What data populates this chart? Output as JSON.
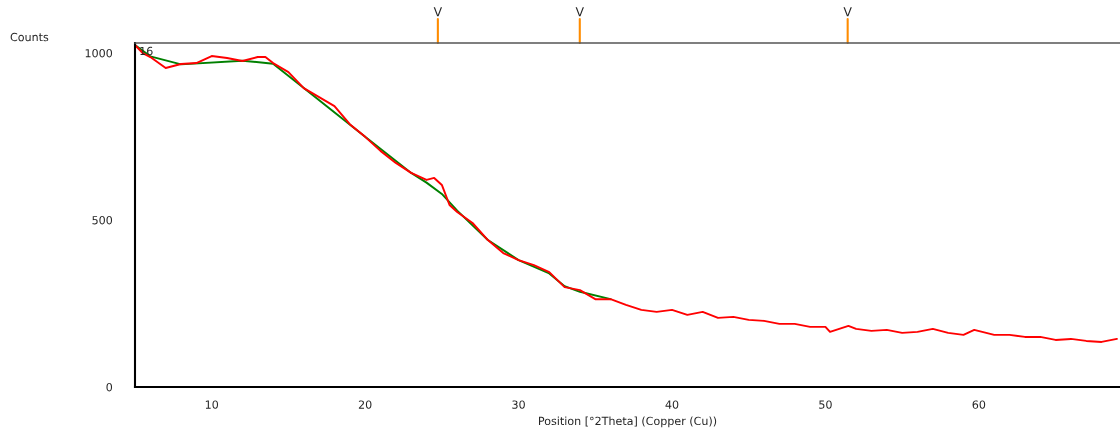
{
  "chart_data": {
    "type": "line",
    "xlabel": "Position [°2Theta] (Copper (Cu))",
    "ylabel": "Counts",
    "xlim": [
      5,
      69.2
    ],
    "ylim": [
      0,
      1030
    ],
    "xticks": [
      10,
      20,
      30,
      40,
      50,
      60
    ],
    "yticks": [
      0,
      500,
      1000
    ],
    "grid": false,
    "legend": false,
    "marker": "none",
    "line_style": "solid",
    "annotations": [
      {
        "text": "16",
        "x": 5,
        "y": 1024
      }
    ],
    "ref_lines": [
      {
        "axis": "x",
        "value": 24.74,
        "label": "V",
        "color": "#ff8c00"
      },
      {
        "axis": "x",
        "value": 33.99,
        "label": "V",
        "color": "#ff8c00"
      },
      {
        "axis": "x",
        "value": 51.45,
        "label": "V",
        "color": "#ff8c00"
      }
    ],
    "series": [
      {
        "color": "#008000",
        "x": [
          5,
          6,
          8,
          12,
          14,
          16,
          20,
          23,
          24,
          25,
          26,
          28,
          30,
          32,
          33,
          34,
          36
        ],
        "values": [
          1024,
          990,
          966,
          977,
          968,
          895,
          749,
          641,
          612,
          578,
          528,
          440,
          380,
          340,
          302,
          285,
          263
        ]
      },
      {
        "color": "#ff0000",
        "x": [
          5,
          5.5,
          6,
          7,
          8,
          9,
          10,
          11,
          12,
          13,
          13.5,
          14,
          15,
          16,
          17,
          18,
          19,
          20,
          21,
          22,
          23,
          24,
          24.5,
          25,
          25.5,
          26,
          27,
          28,
          29,
          30,
          31,
          32,
          33,
          34,
          35,
          36,
          37,
          38,
          39,
          40,
          41,
          42,
          43,
          44,
          45,
          46,
          47,
          48,
          49,
          50,
          50.3,
          51.5,
          52,
          53,
          54,
          55,
          56,
          57,
          58,
          59,
          59.7,
          61,
          62,
          63,
          64,
          65,
          66,
          67,
          68,
          69
        ],
        "values": [
          1024,
          1000,
          988,
          955,
          967,
          970,
          991,
          985,
          976,
          988,
          988,
          970,
          943,
          895,
          868,
          841,
          787,
          749,
          707,
          671,
          641,
          620,
          626,
          605,
          545,
          524,
          491,
          440,
          401,
          380,
          365,
          344,
          299,
          290,
          263,
          263,
          246,
          231,
          225,
          231,
          216,
          225,
          207,
          210,
          201,
          198,
          189,
          189,
          180,
          180,
          165,
          183,
          174,
          168,
          171,
          162,
          165,
          174,
          162,
          156,
          171,
          156,
          156,
          150,
          150,
          141,
          144,
          138,
          135,
          144
        ]
      }
    ]
  }
}
